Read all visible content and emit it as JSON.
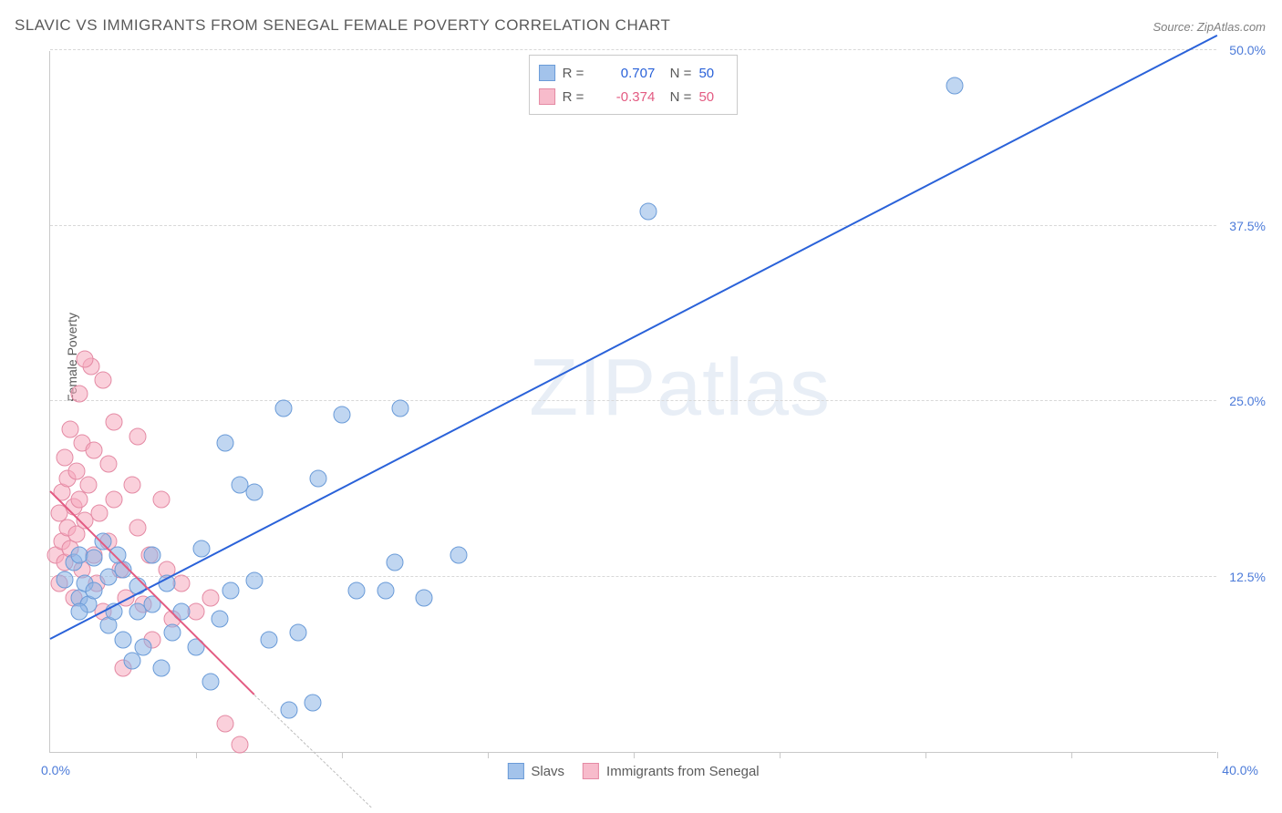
{
  "title": "SLAVIC VS IMMIGRANTS FROM SENEGAL FEMALE POVERTY CORRELATION CHART",
  "source": "Source: ZipAtlas.com",
  "chart": {
    "type": "scatter",
    "ylabel": "Female Poverty",
    "xlim": [
      0,
      40
    ],
    "ylim": [
      0,
      50
    ],
    "xtick_step": 5,
    "ytick_step": 12.5,
    "yticks_labels": [
      "12.5%",
      "25.0%",
      "37.5%",
      "50.0%"
    ],
    "xticks_labels": {
      "left": "0.0%",
      "right": "40.0%"
    },
    "background_color": "#ffffff",
    "grid_color": "#d8d8d8",
    "axis_color": "#c9c9c9",
    "marker_size": 19,
    "series": {
      "slavs": {
        "label": "Slavs",
        "color_fill": "rgba(140,180,230,0.55)",
        "color_stroke": "#6a9bd8",
        "trend_color": "#2a62d9",
        "R": "0.707",
        "N": "50",
        "trend_line": {
          "x1": 0,
          "y1": 8.0,
          "x2": 40,
          "y2": 51.0
        },
        "points": [
          [
            0.5,
            12.3
          ],
          [
            0.8,
            13.5
          ],
          [
            1.0,
            11.0
          ],
          [
            1.0,
            14.0
          ],
          [
            1.2,
            12.0
          ],
          [
            1.3,
            10.5
          ],
          [
            1.5,
            13.8
          ],
          [
            1.5,
            11.5
          ],
          [
            1.8,
            15.0
          ],
          [
            2.0,
            9.0
          ],
          [
            2.0,
            12.5
          ],
          [
            2.2,
            10.0
          ],
          [
            2.5,
            8.0
          ],
          [
            2.5,
            13.0
          ],
          [
            2.8,
            6.5
          ],
          [
            3.0,
            10.0
          ],
          [
            3.0,
            11.8
          ],
          [
            3.2,
            7.5
          ],
          [
            3.5,
            14.0
          ],
          [
            3.5,
            10.5
          ],
          [
            3.8,
            6.0
          ],
          [
            4.0,
            12.0
          ],
          [
            4.2,
            8.5
          ],
          [
            4.5,
            10.0
          ],
          [
            5.0,
            7.5
          ],
          [
            5.2,
            14.5
          ],
          [
            5.5,
            5.0
          ],
          [
            5.8,
            9.5
          ],
          [
            6.0,
            22.0
          ],
          [
            6.2,
            11.5
          ],
          [
            6.5,
            19.0
          ],
          [
            7.0,
            18.5
          ],
          [
            7.0,
            12.2
          ],
          [
            7.5,
            8.0
          ],
          [
            8.0,
            24.5
          ],
          [
            8.2,
            3.0
          ],
          [
            8.5,
            8.5
          ],
          [
            9.0,
            3.5
          ],
          [
            9.2,
            19.5
          ],
          [
            10.0,
            24.0
          ],
          [
            10.5,
            11.5
          ],
          [
            11.5,
            11.5
          ],
          [
            11.8,
            13.5
          ],
          [
            12.0,
            24.5
          ],
          [
            12.8,
            11.0
          ],
          [
            14.0,
            14.0
          ],
          [
            20.5,
            38.5
          ],
          [
            31.0,
            47.5
          ],
          [
            1.0,
            10.0
          ],
          [
            2.3,
            14.0
          ]
        ]
      },
      "senegal": {
        "label": "Immigrants from Senegal",
        "color_fill": "rgba(245,170,190,0.55)",
        "color_stroke": "#e48aa4",
        "trend_color": "#e35b82",
        "R": "-0.374",
        "N": "50",
        "trend_line": {
          "x1": 0,
          "y1": 18.5,
          "x2": 7.0,
          "y2": 4.0
        },
        "trend_dash": {
          "x1": 7.0,
          "y1": 4.0,
          "x2": 11.0,
          "y2": -4.0
        },
        "points": [
          [
            0.2,
            14.0
          ],
          [
            0.3,
            17.0
          ],
          [
            0.3,
            12.0
          ],
          [
            0.4,
            18.5
          ],
          [
            0.4,
            15.0
          ],
          [
            0.5,
            21.0
          ],
          [
            0.5,
            13.5
          ],
          [
            0.6,
            16.0
          ],
          [
            0.6,
            19.5
          ],
          [
            0.7,
            23.0
          ],
          [
            0.7,
            14.5
          ],
          [
            0.8,
            17.5
          ],
          [
            0.8,
            11.0
          ],
          [
            0.9,
            20.0
          ],
          [
            0.9,
            15.5
          ],
          [
            1.0,
            18.0
          ],
          [
            1.0,
            25.5
          ],
          [
            1.1,
            13.0
          ],
          [
            1.1,
            22.0
          ],
          [
            1.2,
            16.5
          ],
          [
            1.3,
            19.0
          ],
          [
            1.4,
            27.5
          ],
          [
            1.5,
            14.0
          ],
          [
            1.5,
            21.5
          ],
          [
            1.6,
            12.0
          ],
          [
            1.7,
            17.0
          ],
          [
            1.8,
            10.0
          ],
          [
            1.8,
            26.5
          ],
          [
            2.0,
            20.5
          ],
          [
            2.0,
            15.0
          ],
          [
            2.2,
            18.0
          ],
          [
            2.2,
            23.5
          ],
          [
            2.4,
            13.0
          ],
          [
            2.5,
            6.0
          ],
          [
            2.6,
            11.0
          ],
          [
            2.8,
            19.0
          ],
          [
            3.0,
            16.0
          ],
          [
            3.0,
            22.5
          ],
          [
            3.2,
            10.5
          ],
          [
            3.4,
            14.0
          ],
          [
            3.5,
            8.0
          ],
          [
            3.8,
            18.0
          ],
          [
            4.0,
            13.0
          ],
          [
            4.2,
            9.5
          ],
          [
            4.5,
            12.0
          ],
          [
            5.0,
            10.0
          ],
          [
            5.5,
            11.0
          ],
          [
            6.0,
            2.0
          ],
          [
            6.5,
            0.5
          ],
          [
            1.2,
            28.0
          ]
        ]
      }
    }
  },
  "legend_bottom": {
    "items": [
      "Slavs",
      "Immigrants from Senegal"
    ]
  },
  "watermark": {
    "text1": "ZIP",
    "text2": "atlas"
  }
}
